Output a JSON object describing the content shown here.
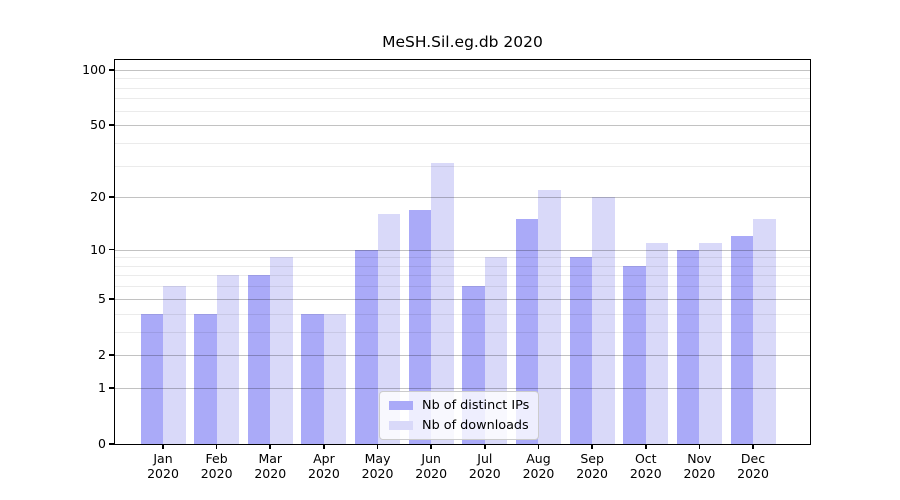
{
  "chart_data": {
    "type": "bar",
    "title": "MeSH.Sil.eg.db 2020",
    "categories": [
      "Jan",
      "Feb",
      "Mar",
      "Apr",
      "May",
      "Jun",
      "Jul",
      "Aug",
      "Sep",
      "Oct",
      "Nov",
      "Dec"
    ],
    "x_tick_second_line": "2020",
    "series": [
      {
        "name": "Nb of distinct IPs",
        "color": "#aaaaf8",
        "values": [
          4,
          4,
          7,
          4,
          10,
          17,
          6,
          15,
          9,
          8,
          10,
          12
        ]
      },
      {
        "name": "Nb of downloads",
        "color": "#d9d9f9",
        "values": [
          6,
          7,
          9,
          4,
          16,
          31,
          9,
          22,
          20,
          11,
          11,
          15
        ]
      }
    ],
    "xlabel": "",
    "ylabel": "",
    "scale": "log1p",
    "ylim": [
      0,
      113
    ],
    "y_major_ticks": [
      100,
      50,
      20,
      10,
      5,
      2,
      1,
      0
    ],
    "y_minor_gridlines": [
      90,
      80,
      70,
      60,
      40,
      30,
      9,
      8,
      7,
      6,
      4,
      3
    ],
    "grid": true,
    "legend_position": "lower-center"
  },
  "colors": {
    "distinct_ips_bar": "#aaaaf8",
    "downloads_bar": "#d9d9f9",
    "axis": "#000000",
    "grid_major": "#c6c6c6",
    "grid_minor": "#ebebeb",
    "legend_border": "#cccccc"
  }
}
